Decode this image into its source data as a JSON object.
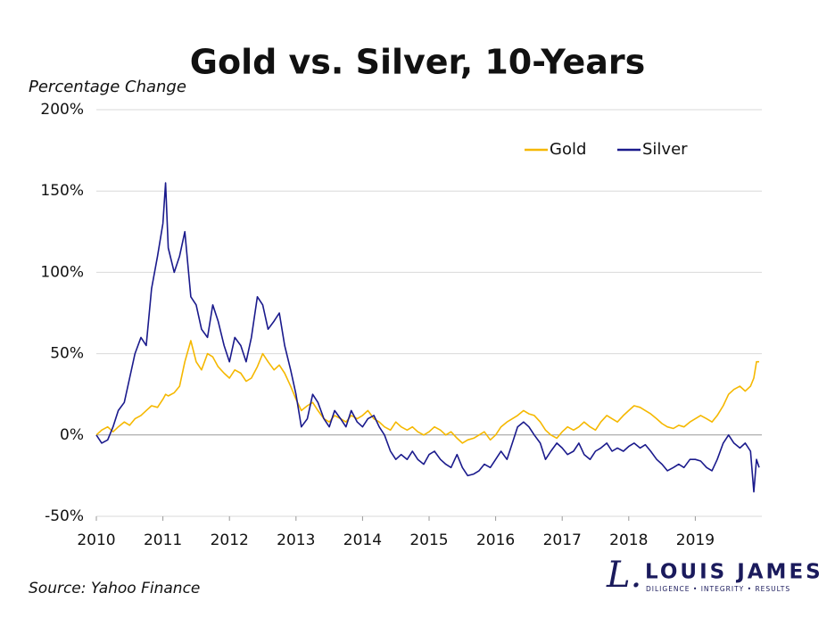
{
  "chart_data": {
    "type": "line",
    "title": "Gold vs. Silver, 10-Years",
    "y_label": "Percentage Change",
    "source": "Source: Yahoo Finance",
    "logo": {
      "mark": "L.",
      "name": "LOUIS JAMES",
      "tagline": "DILIGENCE • INTEGRITY • RESULTS"
    },
    "x": [
      2010.0,
      2010.08,
      2010.17,
      2010.25,
      2010.33,
      2010.42,
      2010.5,
      2010.58,
      2010.67,
      2010.75,
      2010.83,
      2010.92,
      2011.0,
      2011.04,
      2011.08,
      2011.17,
      2011.25,
      2011.33,
      2011.42,
      2011.5,
      2011.58,
      2011.67,
      2011.75,
      2011.83,
      2011.92,
      2012.0,
      2012.08,
      2012.17,
      2012.25,
      2012.33,
      2012.42,
      2012.5,
      2012.58,
      2012.67,
      2012.75,
      2012.83,
      2012.92,
      2013.0,
      2013.08,
      2013.17,
      2013.25,
      2013.33,
      2013.42,
      2013.5,
      2013.58,
      2013.67,
      2013.75,
      2013.83,
      2013.92,
      2014.0,
      2014.08,
      2014.17,
      2014.25,
      2014.33,
      2014.42,
      2014.5,
      2014.58,
      2014.67,
      2014.75,
      2014.83,
      2014.92,
      2015.0,
      2015.08,
      2015.17,
      2015.25,
      2015.33,
      2015.42,
      2015.5,
      2015.58,
      2015.67,
      2015.75,
      2015.83,
      2015.92,
      2016.0,
      2016.08,
      2016.17,
      2016.25,
      2016.33,
      2016.42,
      2016.5,
      2016.58,
      2016.67,
      2016.75,
      2016.83,
      2016.92,
      2017.0,
      2017.08,
      2017.17,
      2017.25,
      2017.33,
      2017.42,
      2017.5,
      2017.58,
      2017.67,
      2017.75,
      2017.83,
      2017.92,
      2018.0,
      2018.08,
      2018.17,
      2018.25,
      2018.33,
      2018.42,
      2018.5,
      2018.58,
      2018.67,
      2018.75,
      2018.83,
      2018.92,
      2019.0,
      2019.08,
      2019.17,
      2019.25,
      2019.33,
      2019.42,
      2019.5,
      2019.58,
      2019.67,
      2019.75,
      2019.83,
      2019.88,
      2019.92,
      2019.96
    ],
    "series": [
      {
        "name": "Gold",
        "color": "#f5b800",
        "values": [
          0,
          3,
          5,
          2,
          5,
          8,
          6,
          10,
          12,
          15,
          18,
          17,
          22,
          25,
          24,
          26,
          30,
          45,
          58,
          45,
          40,
          50,
          48,
          42,
          38,
          35,
          40,
          38,
          33,
          35,
          42,
          50,
          45,
          40,
          43,
          38,
          30,
          22,
          15,
          18,
          20,
          15,
          10,
          8,
          12,
          10,
          8,
          12,
          10,
          12,
          15,
          10,
          8,
          5,
          3,
          8,
          5,
          3,
          5,
          2,
          0,
          2,
          5,
          3,
          0,
          2,
          -2,
          -5,
          -3,
          -2,
          0,
          2,
          -3,
          0,
          5,
          8,
          10,
          12,
          15,
          13,
          12,
          8,
          3,
          0,
          -2,
          2,
          5,
          3,
          5,
          8,
          5,
          3,
          8,
          12,
          10,
          8,
          12,
          15,
          18,
          17,
          15,
          13,
          10,
          7,
          5,
          4,
          6,
          5,
          8,
          10,
          12,
          10,
          8,
          12,
          18,
          25,
          28,
          30,
          27,
          30,
          35,
          45,
          45
        ]
      },
      {
        "name": "Silver",
        "color": "#1a1a8c",
        "values": [
          0,
          -5,
          -3,
          5,
          15,
          20,
          35,
          50,
          60,
          55,
          90,
          110,
          130,
          155,
          115,
          100,
          110,
          125,
          85,
          80,
          65,
          60,
          80,
          70,
          55,
          45,
          60,
          55,
          45,
          60,
          85,
          80,
          65,
          70,
          75,
          55,
          40,
          25,
          5,
          10,
          25,
          20,
          10,
          5,
          15,
          10,
          5,
          15,
          8,
          5,
          10,
          12,
          5,
          0,
          -10,
          -15,
          -12,
          -15,
          -10,
          -15,
          -18,
          -12,
          -10,
          -15,
          -18,
          -20,
          -12,
          -20,
          -25,
          -24,
          -22,
          -18,
          -20,
          -15,
          -10,
          -15,
          -5,
          5,
          8,
          5,
          0,
          -5,
          -15,
          -10,
          -5,
          -8,
          -12,
          -10,
          -5,
          -12,
          -15,
          -10,
          -8,
          -5,
          -10,
          -8,
          -10,
          -7,
          -5,
          -8,
          -6,
          -10,
          -15,
          -18,
          -22,
          -20,
          -18,
          -20,
          -15,
          -15,
          -16,
          -20,
          -22,
          -15,
          -5,
          0,
          -5,
          -8,
          -5,
          -10,
          -35,
          -15,
          -20
        ]
      }
    ],
    "xlim": [
      2010,
      2020
    ],
    "xticks": [
      2010,
      2011,
      2012,
      2013,
      2014,
      2015,
      2016,
      2017,
      2018,
      2019
    ],
    "ylim": [
      -50,
      200
    ],
    "yticks": [
      {
        "value": -50,
        "label": "-50%"
      },
      {
        "value": 0,
        "label": "0%"
      },
      {
        "value": 50,
        "label": "50%"
      },
      {
        "value": 100,
        "label": "100%"
      },
      {
        "value": 150,
        "label": "150%"
      },
      {
        "value": 200,
        "label": "200%"
      }
    ],
    "grid": true,
    "legend": "top-right"
  }
}
